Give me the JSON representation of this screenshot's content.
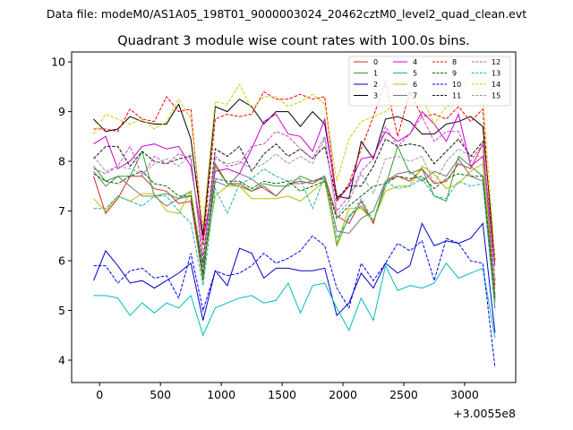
{
  "header": {
    "file_label": "Data file: modeM0/AS1A05_198T01_9000003024_20462cztM0_level2_quad_clean.evt"
  },
  "chart_data": {
    "type": "line",
    "title": "Quadrant 3 module wise count rates with 100.0s bins.",
    "xlabel": "",
    "ylabel": "",
    "x_offset_label": "+3.0055e8",
    "xlim": [
      -230,
      3420
    ],
    "ylim": [
      3.55,
      10.2
    ],
    "xticks": [
      0,
      500,
      1000,
      1500,
      2000,
      2500,
      3000
    ],
    "yticks": [
      4,
      5,
      6,
      7,
      8,
      9,
      10
    ],
    "legend_position": "top-right",
    "x": [
      -50,
      50,
      150,
      250,
      350,
      450,
      550,
      650,
      750,
      850,
      950,
      1050,
      1150,
      1250,
      1350,
      1450,
      1550,
      1650,
      1750,
      1850,
      1950,
      2050,
      2150,
      2250,
      2350,
      2450,
      2550,
      2650,
      2750,
      2850,
      2950,
      3050,
      3150,
      3250
    ],
    "series": [
      {
        "name": "0",
        "color": "#d62728",
        "dash": "solid",
        "values": [
          7.7,
          6.95,
          7.25,
          7.7,
          7.7,
          7.45,
          7.4,
          7.15,
          7.2,
          5.6,
          7.95,
          7.55,
          7.55,
          7.4,
          7.5,
          7.3,
          7.55,
          7.6,
          7.55,
          7.7,
          6.9,
          6.75,
          7.2,
          6.75,
          7.6,
          7.7,
          7.6,
          7.85,
          7.55,
          7.6,
          7.95,
          7.85,
          8.35,
          5.2
        ]
      },
      {
        "name": "1",
        "color": "#2ca02c",
        "dash": "solid",
        "values": [
          7.9,
          7.6,
          7.7,
          7.7,
          8.2,
          7.3,
          7.35,
          7.25,
          7.4,
          5.65,
          7.9,
          7.55,
          7.5,
          7.4,
          7.55,
          7.5,
          7.5,
          7.7,
          7.6,
          7.65,
          6.3,
          6.9,
          7.1,
          6.8,
          7.5,
          8.3,
          7.75,
          7.85,
          7.3,
          7.2,
          8.1,
          7.9,
          7.7,
          5.3
        ]
      },
      {
        "name": "2",
        "color": "#0000cc",
        "dash": "solid",
        "values": [
          5.6,
          6.2,
          5.9,
          5.55,
          5.6,
          5.45,
          5.6,
          5.75,
          5.95,
          4.8,
          5.8,
          5.5,
          6.25,
          6.15,
          5.65,
          5.85,
          5.85,
          5.8,
          5.8,
          5.85,
          4.9,
          5.15,
          5.75,
          5.45,
          5.95,
          5.75,
          5.9,
          6.75,
          6.3,
          6.4,
          6.35,
          6.45,
          6.75,
          4.55
        ]
      },
      {
        "name": "3",
        "color": "#000000",
        "dash": "solid",
        "values": [
          8.85,
          8.6,
          8.65,
          8.9,
          8.8,
          8.75,
          8.75,
          9.15,
          8.45,
          6.5,
          9.1,
          9.0,
          9.25,
          9.1,
          8.75,
          9.0,
          9.0,
          8.7,
          9.0,
          8.75,
          7.3,
          7.25,
          8.4,
          8.05,
          8.85,
          8.9,
          8.8,
          8.55,
          8.55,
          8.75,
          8.8,
          8.9,
          8.7,
          6.0
        ]
      },
      {
        "name": "4",
        "color": "#cc00cc",
        "dash": "solid",
        "values": [
          8.35,
          8.5,
          7.85,
          8.0,
          8.3,
          8.35,
          8.25,
          8.3,
          7.9,
          6.4,
          7.8,
          7.85,
          7.75,
          8.25,
          8.8,
          8.95,
          8.55,
          8.5,
          8.2,
          8.85,
          7.2,
          7.5,
          8.05,
          8.1,
          8.6,
          8.4,
          8.55,
          9.0,
          8.75,
          8.4,
          8.95,
          7.9,
          8.1,
          5.9
        ]
      },
      {
        "name": "5",
        "color": "#00bbbb",
        "dash": "solid",
        "values": [
          5.3,
          5.3,
          5.25,
          4.9,
          5.15,
          4.95,
          5.15,
          5.05,
          5.3,
          4.5,
          5.05,
          5.15,
          5.25,
          5.3,
          5.15,
          5.2,
          5.55,
          4.95,
          5.5,
          5.55,
          5.05,
          4.6,
          5.25,
          4.8,
          5.9,
          5.4,
          5.5,
          5.45,
          5.55,
          5.95,
          5.65,
          5.75,
          5.85,
          4.45
        ]
      },
      {
        "name": "6",
        "color": "#bbbb00",
        "dash": "solid",
        "values": [
          7.25,
          7.0,
          7.3,
          7.2,
          7.35,
          7.35,
          7.0,
          6.95,
          7.4,
          5.85,
          7.3,
          7.5,
          7.5,
          7.25,
          7.25,
          7.25,
          7.3,
          7.2,
          7.4,
          7.6,
          6.35,
          7.05,
          7.05,
          6.8,
          7.4,
          7.5,
          7.5,
          7.9,
          7.75,
          7.45,
          7.55,
          7.8,
          7.95,
          5.15
        ]
      },
      {
        "name": "7",
        "color": "#777777",
        "dash": "solid",
        "values": [
          7.8,
          7.5,
          7.7,
          7.5,
          7.3,
          7.3,
          7.1,
          7.25,
          7.3,
          5.9,
          7.6,
          7.5,
          7.75,
          7.65,
          7.45,
          7.3,
          7.55,
          7.55,
          7.6,
          7.7,
          6.6,
          6.55,
          6.85,
          7.0,
          7.6,
          7.75,
          7.8,
          7.6,
          7.8,
          7.7,
          8.05,
          7.7,
          7.6,
          5.05
        ]
      },
      {
        "name": "8",
        "color": "#ff0000",
        "dash": "dashed",
        "values": [
          8.65,
          8.65,
          8.6,
          9.05,
          8.85,
          8.8,
          9.3,
          9.0,
          9.05,
          6.3,
          8.85,
          8.95,
          8.9,
          8.95,
          9.4,
          9.25,
          9.25,
          9.35,
          9.25,
          9.3,
          7.2,
          7.55,
          8.25,
          8.9,
          9.6,
          8.5,
          9.4,
          8.9,
          8.95,
          8.85,
          9.1,
          8.8,
          9.05,
          5.45
        ]
      },
      {
        "name": "9",
        "color": "#006600",
        "dash": "dashed",
        "values": [
          7.75,
          7.6,
          7.55,
          7.7,
          7.8,
          7.55,
          7.5,
          7.3,
          7.3,
          5.75,
          7.65,
          7.6,
          7.6,
          7.45,
          7.6,
          7.55,
          7.6,
          7.4,
          7.5,
          7.6,
          6.85,
          7.1,
          7.3,
          7.5,
          7.55,
          7.7,
          7.65,
          7.7,
          7.45,
          7.65,
          7.75,
          7.7,
          7.7,
          5.25
        ]
      },
      {
        "name": "10",
        "color": "#0000ff",
        "dash": "dashed",
        "values": [
          5.9,
          5.9,
          5.55,
          5.8,
          5.85,
          5.65,
          5.7,
          5.25,
          6.15,
          5.0,
          5.8,
          5.7,
          5.75,
          5.9,
          6.15,
          5.95,
          6.05,
          6.2,
          6.5,
          6.3,
          5.45,
          5.05,
          5.95,
          5.6,
          5.95,
          6.35,
          6.2,
          6.4,
          5.6,
          6.45,
          6.35,
          6.0,
          5.95,
          3.85
        ]
      },
      {
        "name": "11",
        "color": "#111111",
        "dash": "dashed",
        "values": [
          8.05,
          8.3,
          8.3,
          7.9,
          8.2,
          8.0,
          7.95,
          8.05,
          8.1,
          5.95,
          8.25,
          8.1,
          8.3,
          7.8,
          8.15,
          8.35,
          8.1,
          8.25,
          8.05,
          8.3,
          7.25,
          7.5,
          7.5,
          7.9,
          8.45,
          8.3,
          8.35,
          8.3,
          7.95,
          8.2,
          8.45,
          8.1,
          8.4,
          5.6
        ]
      },
      {
        "name": "12",
        "color": "#cc44cc",
        "dash": "dashed",
        "values": [
          7.85,
          7.75,
          7.9,
          8.3,
          7.7,
          8.1,
          7.95,
          8.15,
          8.05,
          6.1,
          8.1,
          7.9,
          7.95,
          8.3,
          8.35,
          8.6,
          8.5,
          8.25,
          8.05,
          8.5,
          7.0,
          7.3,
          7.8,
          8.05,
          8.7,
          8.3,
          8.55,
          8.9,
          8.4,
          8.6,
          8.6,
          8.0,
          8.35,
          5.6
        ]
      },
      {
        "name": "13",
        "color": "#22b2b2",
        "dash": "dashed",
        "values": [
          7.05,
          7.05,
          7.3,
          7.2,
          7.1,
          7.3,
          7.3,
          7.0,
          6.75,
          5.5,
          7.45,
          6.95,
          7.55,
          7.65,
          7.85,
          7.7,
          7.6,
          7.65,
          7.05,
          7.7,
          6.45,
          6.85,
          7.25,
          6.8,
          7.6,
          7.45,
          7.5,
          7.65,
          7.3,
          7.25,
          7.6,
          7.5,
          7.55,
          5.0
        ]
      },
      {
        "name": "14",
        "color": "#cccc00",
        "dash": "dashed",
        "values": [
          8.55,
          8.95,
          8.85,
          8.75,
          8.85,
          8.65,
          8.8,
          9.25,
          8.85,
          6.7,
          9.2,
          9.15,
          9.55,
          9.05,
          9.3,
          9.3,
          9.1,
          9.2,
          9.35,
          9.15,
          7.6,
          8.45,
          8.8,
          8.9,
          9.0,
          9.2,
          9.25,
          9.3,
          8.75,
          9.1,
          9.15,
          9.8,
          9.3,
          6.0
        ]
      },
      {
        "name": "15",
        "color": "#999999",
        "dash": "dashed",
        "values": [
          8.1,
          7.8,
          7.9,
          7.85,
          7.75,
          7.95,
          8.05,
          7.9,
          8.15,
          5.85,
          8.05,
          7.95,
          8.0,
          7.85,
          7.95,
          8.15,
          7.95,
          8.1,
          7.95,
          8.45,
          6.9,
          7.2,
          7.75,
          7.35,
          8.05,
          8.1,
          8.0,
          8.1,
          7.55,
          8.0,
          8.25,
          8.1,
          8.1,
          5.55
        ]
      }
    ]
  }
}
